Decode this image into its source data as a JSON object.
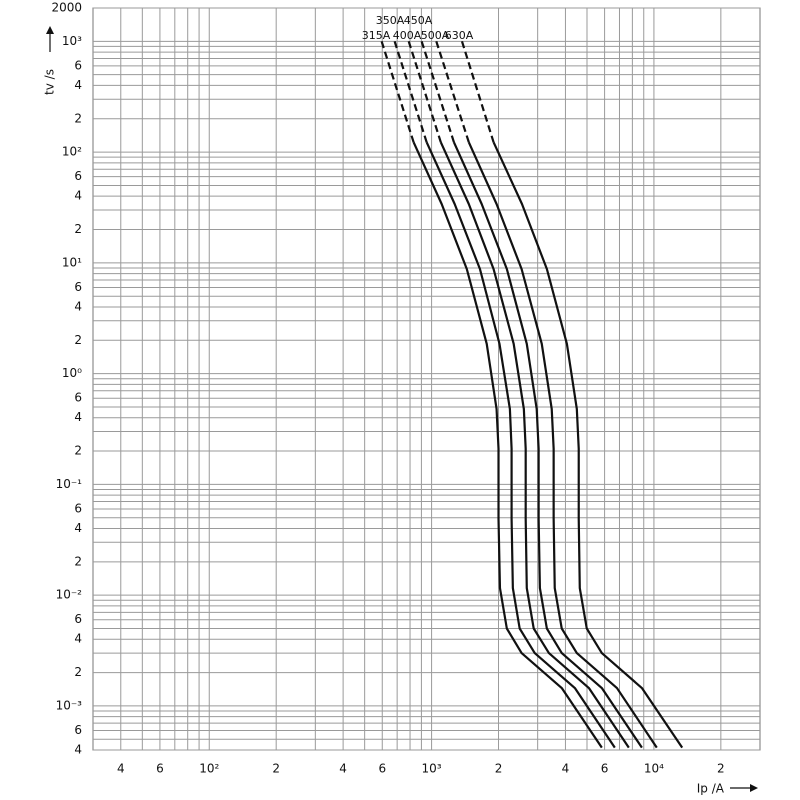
{
  "chart_data": {
    "type": "line",
    "xlabel": "Ip /A",
    "ylabel": "tv /s",
    "xscale": "log",
    "yscale": "log",
    "grid": true,
    "xlim": [
      30,
      30000
    ],
    "ylim": [
      0.0004,
      2000
    ],
    "xticks": [
      {
        "value": 40,
        "label": "4"
      },
      {
        "value": 60,
        "label": "6"
      },
      {
        "value": 100,
        "label": "10²"
      },
      {
        "value": 200,
        "label": "2"
      },
      {
        "value": 400,
        "label": "4"
      },
      {
        "value": 600,
        "label": "6"
      },
      {
        "value": 1000,
        "label": "10³"
      },
      {
        "value": 2000,
        "label": "2"
      },
      {
        "value": 4000,
        "label": "4"
      },
      {
        "value": 6000,
        "label": "6"
      },
      {
        "value": 10000,
        "label": "10⁴"
      },
      {
        "value": 20000,
        "label": "2"
      }
    ],
    "x_minor_grid": [
      50,
      70,
      80,
      90,
      300,
      500,
      700,
      800,
      900,
      3000,
      5000,
      7000,
      8000,
      9000
    ],
    "yticks": [
      2000,
      {
        "value": 1000,
        "label": "10³"
      },
      {
        "value": 600,
        "label": "6"
      },
      {
        "value": 400,
        "label": "4"
      },
      {
        "value": 200,
        "label": "2"
      },
      {
        "value": 100,
        "label": "10²"
      },
      {
        "value": 60,
        "label": "6"
      },
      {
        "value": 40,
        "label": "4"
      },
      {
        "value": 20,
        "label": "2"
      },
      {
        "value": 10,
        "label": "10¹"
      },
      6,
      4,
      2,
      {
        "value": 1,
        "label": "10⁰"
      },
      {
        "value": 0.6,
        "label": "6"
      },
      {
        "value": 0.4,
        "label": "4"
      },
      {
        "value": 0.2,
        "label": "2"
      },
      {
        "value": 0.1,
        "label": "10⁻¹"
      },
      {
        "value": 0.06,
        "label": "6"
      },
      {
        "value": 0.04,
        "label": "4"
      },
      {
        "value": 0.02,
        "label": "2"
      },
      {
        "value": 0.01,
        "label": "10⁻²"
      },
      {
        "value": 0.006,
        "label": "6"
      },
      {
        "value": 0.004,
        "label": "4"
      },
      {
        "value": 0.002,
        "label": "2"
      },
      {
        "value": 0.001,
        "label": "10⁻³"
      },
      {
        "value": 0.0006,
        "label": "6"
      },
      {
        "value": 0.0004,
        "label": "4"
      }
    ],
    "y_minor_grid": [
      0.0005,
      0.0007,
      0.0008,
      0.0009,
      0.003,
      0.005,
      0.007,
      0.008,
      0.009,
      0.03,
      0.05,
      0.07,
      0.08,
      0.09,
      0.3,
      0.5,
      0.7,
      0.8,
      0.9,
      3,
      5,
      7,
      8,
      9,
      30,
      50,
      70,
      80,
      90,
      300,
      500,
      700,
      800,
      900
    ],
    "series": [
      {
        "name": "315A",
        "color": "#111111",
        "x": [
          596,
          830,
          1110,
          1440,
          1770,
          1960,
          2000,
          2000,
          2030,
          2180,
          2540,
          3850,
          5830
        ],
        "values": [
          1000,
          123,
          34,
          8.8,
          1.86,
          0.48,
          0.21,
          0.049,
          0.0116,
          0.005,
          0.003,
          0.00145,
          0.00042
        ]
      },
      {
        "name": "350A",
        "color": "#111111",
        "x": [
          682,
          950,
          1270,
          1650,
          2020,
          2250,
          2290,
          2290,
          2320,
          2490,
          2910,
          4410,
          6670
        ],
        "values": [
          1000,
          123,
          34,
          8.8,
          1.86,
          0.48,
          0.21,
          0.049,
          0.0116,
          0.005,
          0.003,
          0.00145,
          0.00042
        ]
      },
      {
        "name": "400A",
        "color": "#111111",
        "x": [
          789,
          1100,
          1470,
          1900,
          2340,
          2600,
          2650,
          2650,
          2680,
          2880,
          3370,
          5100,
          7710
        ],
        "values": [
          1000,
          123,
          34,
          8.8,
          1.86,
          0.48,
          0.21,
          0.049,
          0.0116,
          0.005,
          0.003,
          0.00145,
          0.00042
        ]
      },
      {
        "name": "450A",
        "color": "#111111",
        "x": [
          902,
          1260,
          1680,
          2180,
          2680,
          2970,
          3030,
          3030,
          3070,
          3300,
          3850,
          5830,
          8830
        ],
        "values": [
          1000,
          123,
          34,
          8.8,
          1.86,
          0.48,
          0.21,
          0.049,
          0.0116,
          0.005,
          0.003,
          0.00145,
          0.00042
        ]
      },
      {
        "name": "500A",
        "color": "#111111",
        "x": [
          1050,
          1470,
          1960,
          2540,
          3130,
          3470,
          3540,
          3540,
          3580,
          3850,
          4500,
          6820,
          10300
        ],
        "values": [
          1000,
          123,
          34,
          8.8,
          1.86,
          0.48,
          0.21,
          0.049,
          0.0116,
          0.005,
          0.003,
          0.00145,
          0.00042
        ]
      },
      {
        "name": "630A",
        "color": "#111111",
        "x": [
          1370,
          1900,
          2550,
          3300,
          4060,
          4500,
          4590,
          4590,
          4640,
          4990,
          5830,
          8830,
          13400
        ],
        "values": [
          1000,
          123,
          34,
          8.8,
          1.86,
          0.48,
          0.21,
          0.049,
          0.0116,
          0.005,
          0.003,
          0.00145,
          0.00042
        ]
      }
    ]
  }
}
